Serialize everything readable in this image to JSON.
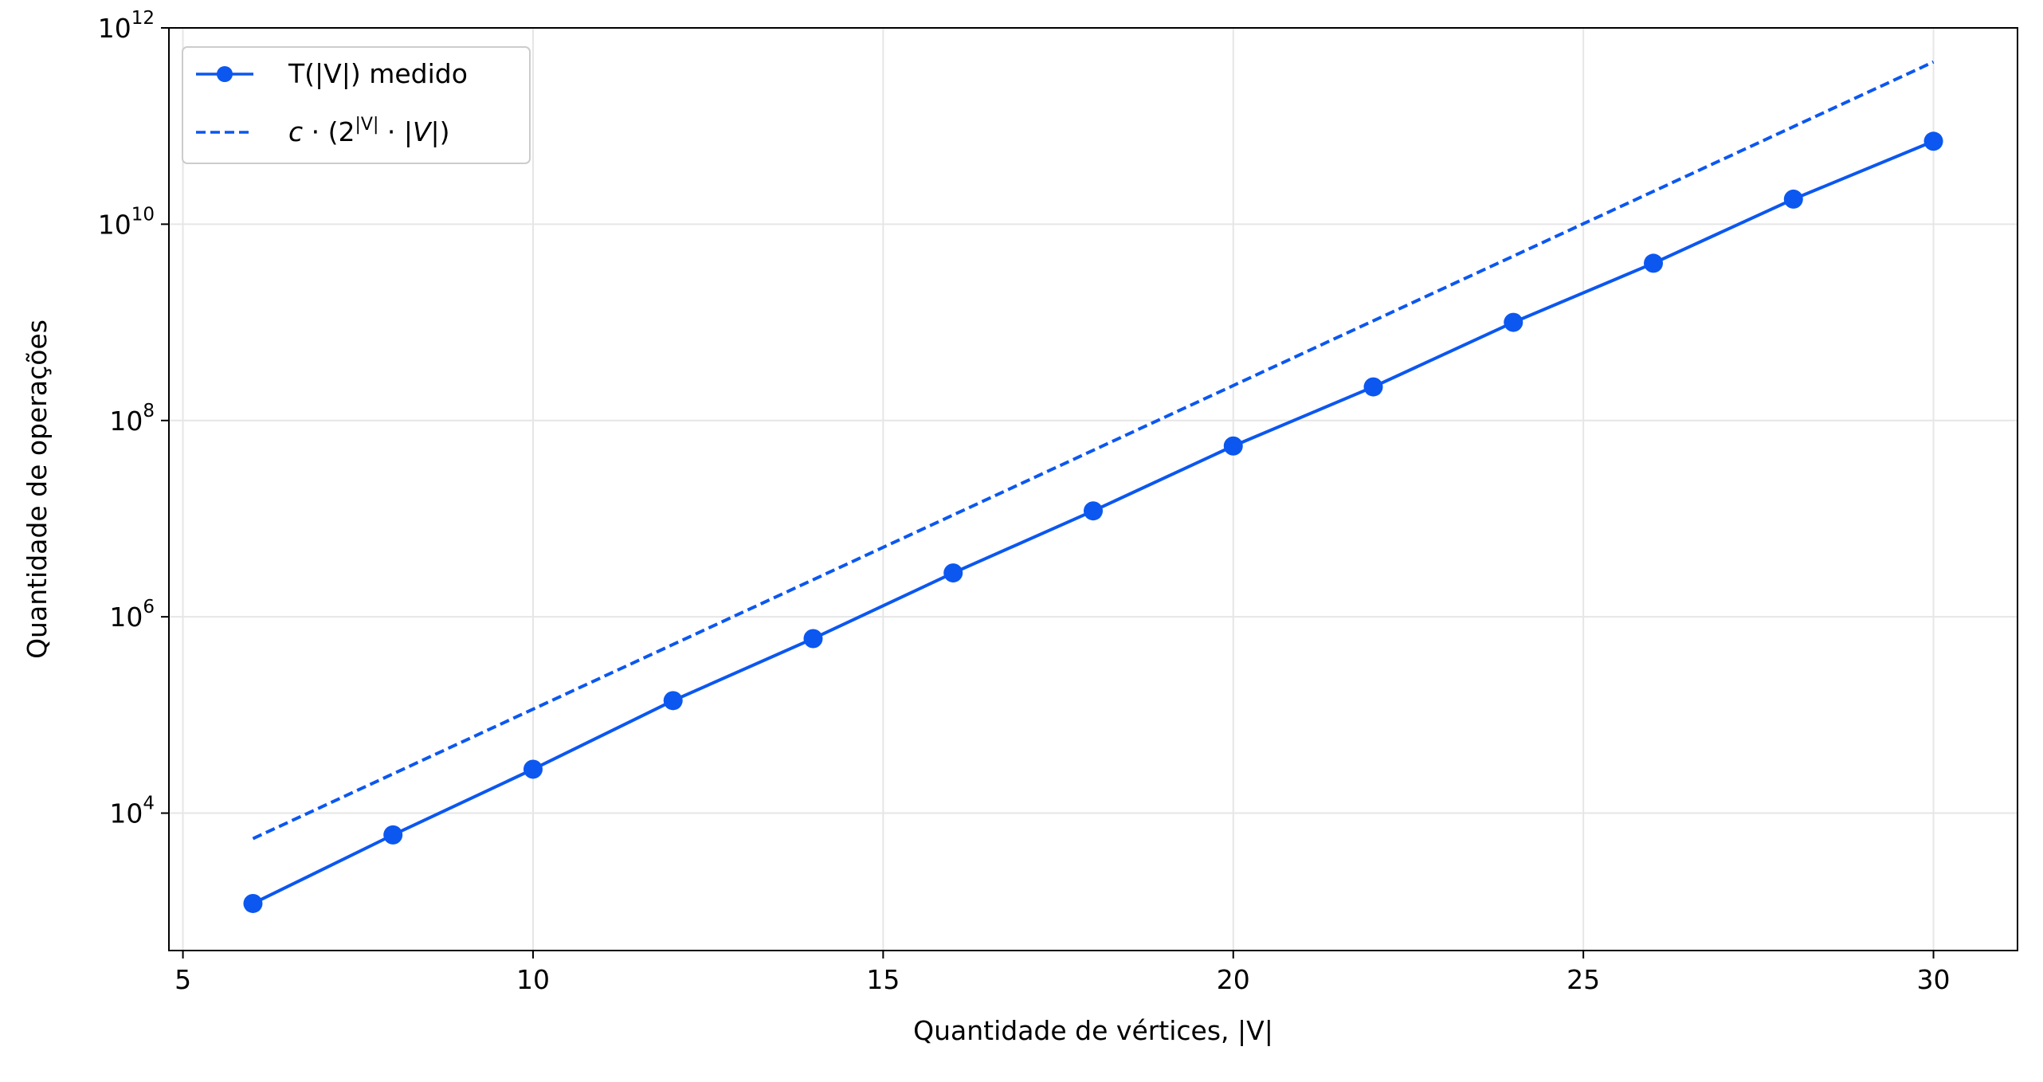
{
  "chart_data": {
    "type": "line",
    "title": "",
    "xlabel": "Quantidade de vértices, |V|",
    "ylabel": "Quantidade de operações",
    "xlim": [
      4.8,
      31.2
    ],
    "ylim_log10": [
      2.6,
      12.0
    ],
    "yscale": "log",
    "grid": true,
    "legend_position": "top-left",
    "x_ticks": [
      5,
      10,
      15,
      20,
      25,
      30
    ],
    "x_tick_labels": [
      "5",
      "10",
      "15",
      "20",
      "25",
      "30"
    ],
    "y_ticks_log10": [
      4,
      6,
      8,
      10,
      12
    ],
    "y_tick_labels": [
      {
        "base": "10",
        "exp": "4"
      },
      {
        "base": "10",
        "exp": "6"
      },
      {
        "base": "10",
        "exp": "8"
      },
      {
        "base": "10",
        "exp": "10"
      },
      {
        "base": "10",
        "exp": "12"
      }
    ],
    "series": [
      {
        "name": "T(|V|) medido",
        "style": "solid-markers",
        "color": "#0b57f0",
        "x": [
          6,
          8,
          10,
          12,
          14,
          16,
          18,
          20,
          22,
          24,
          26,
          28,
          30
        ],
        "y": [
          1200,
          6000,
          28000,
          140000,
          600000,
          2800000,
          12000000,
          55000000,
          220000000,
          1000000000,
          4000000000,
          18000000000,
          70000000000
        ]
      },
      {
        "name": "c·(2^|V|·|V|)",
        "style": "dashed",
        "color": "#0b57f0",
        "x": [
          6,
          30
        ],
        "y": [
          5500,
          450000000000
        ]
      }
    ]
  },
  "legend": {
    "entries": [
      {
        "text": "T(|V|) medido"
      },
      {
        "prefix": "c",
        "mid": " · (2",
        "sup": "|V|",
        "post": " · |",
        "v": "V",
        "end": "|)"
      }
    ]
  }
}
